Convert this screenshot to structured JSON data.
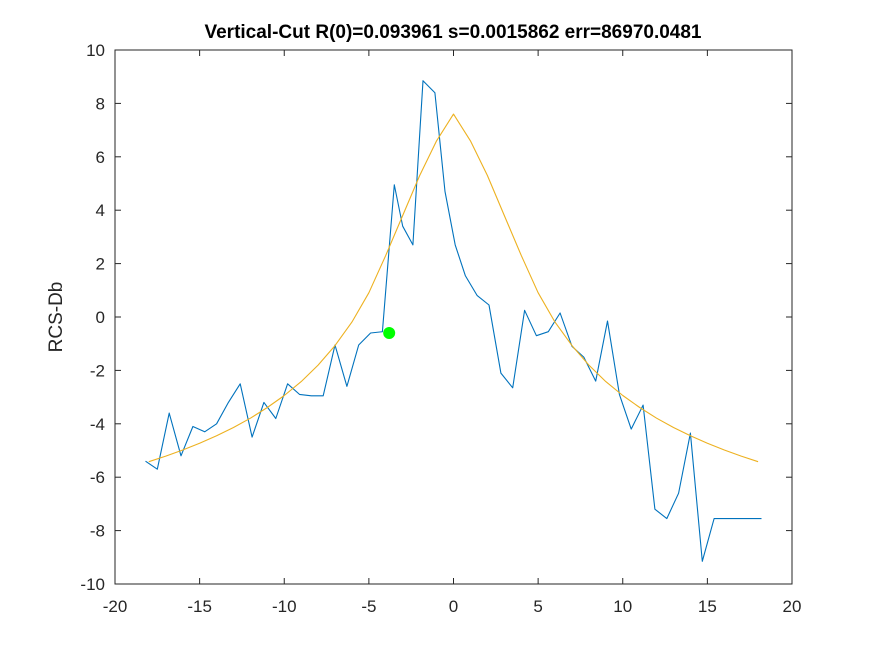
{
  "chart_data": {
    "type": "line",
    "title": "Vertical-Cut R(0)=0.093961 s=0.0015862 err=86970.0481",
    "xlabel": "",
    "ylabel": "RCS-Db",
    "xlim": [
      -20,
      20
    ],
    "ylim": [
      -10,
      10
    ],
    "xticks": [
      -20,
      -15,
      -10,
      -5,
      0,
      5,
      10,
      15,
      20
    ],
    "yticks": [
      -10,
      -8,
      -6,
      -4,
      -2,
      0,
      2,
      4,
      6,
      8,
      10
    ],
    "grid": false,
    "colors": {
      "measured": "#0072BD",
      "fit": "#EDB120",
      "marker": "#00FF00",
      "axes": "#262626"
    },
    "series": [
      {
        "x": [
          -18.2,
          -17.5,
          -16.8,
          -16.1,
          -15.4,
          -14.7,
          -14.0,
          -13.3,
          -12.6,
          -11.9,
          -11.2,
          -10.5,
          -9.8,
          -9.1,
          -8.4,
          -7.7,
          -7.0,
          -6.3,
          -5.6,
          -4.9,
          -4.2,
          -3.5,
          -3.0,
          -2.4,
          -1.8,
          -1.1,
          -0.5,
          0.1,
          0.7,
          1.4,
          2.1,
          2.8,
          3.5,
          4.2,
          4.9,
          5.6,
          6.3,
          7.0,
          7.7,
          8.4,
          9.1,
          9.8,
          10.5,
          11.2,
          11.9,
          12.6,
          13.3,
          14.0,
          14.7,
          15.4,
          16.1,
          16.8,
          17.5,
          18.2
        ],
        "y": [
          -5.4,
          -5.7,
          -3.6,
          -5.2,
          -4.1,
          -4.3,
          -4.0,
          -3.2,
          -2.5,
          -4.5,
          -3.2,
          -3.8,
          -2.5,
          -2.9,
          -2.95,
          -2.95,
          -1.05,
          -2.6,
          -1.05,
          -0.6,
          -0.55,
          4.95,
          3.4,
          2.7,
          8.85,
          8.4,
          4.7,
          2.7,
          1.55,
          0.8,
          0.45,
          -2.1,
          -2.65,
          0.25,
          -0.7,
          -0.55,
          0.15,
          -1.1,
          -1.5,
          -2.4,
          -0.15,
          -2.9,
          -4.2,
          -3.3,
          -7.2,
          -7.55,
          -6.6,
          -4.35,
          -9.15,
          -7.55,
          -7.55,
          -7.55,
          -7.55,
          -7.55
        ]
      },
      {
        "x": [
          -18,
          -17,
          -16,
          -15,
          -14,
          -13,
          -12,
          -11,
          -10,
          -9,
          -8,
          -7,
          -6,
          -5,
          -4,
          -3,
          -2,
          -1,
          0,
          1,
          2,
          3,
          4,
          5,
          6,
          7,
          8,
          9,
          10,
          11,
          12,
          13,
          14,
          15,
          16,
          17,
          18
        ],
        "y": [
          -5.42,
          -5.21,
          -4.98,
          -4.73,
          -4.45,
          -4.14,
          -3.79,
          -3.39,
          -2.94,
          -2.42,
          -1.8,
          -1.07,
          -0.19,
          0.91,
          2.31,
          3.8,
          5.3,
          6.6,
          7.6,
          6.6,
          5.3,
          3.8,
          2.31,
          0.91,
          -0.19,
          -1.07,
          -1.8,
          -2.42,
          -2.94,
          -3.39,
          -3.79,
          -4.14,
          -4.45,
          -4.73,
          -4.98,
          -5.21,
          -5.42
        ]
      },
      {
        "x": [
          -3.8
        ],
        "y": [
          -0.6
        ]
      }
    ]
  }
}
